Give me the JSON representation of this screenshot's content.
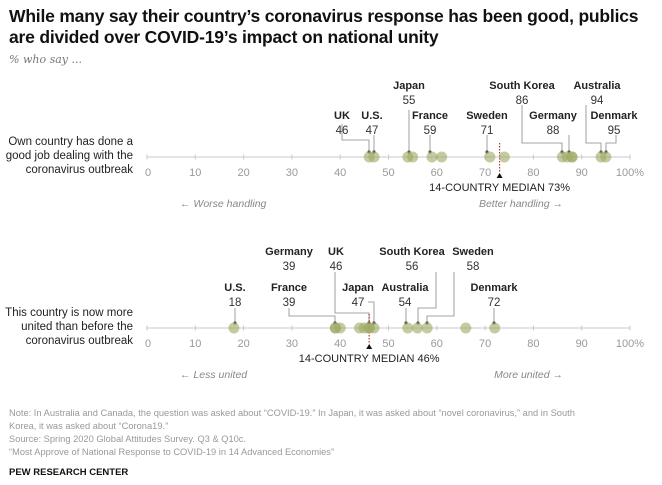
{
  "header": {
    "title": "While many say their country’s coronavirus response has been good, publics are divided over COVID-19’s impact on national unity",
    "subtitle": "% who say ..."
  },
  "footer": {
    "note_line1": "Note: In Australia and Canada, the question was asked about “COVID-19.” In Japan, it was asked about “novel coronavirus,” and in South",
    "note_line2": "Korea, it was asked about “Corona19.”",
    "source": "Source: Spring 2020 Global Attitudes Survey. Q3 & Q10c.",
    "report": "“Most Approve of National Response to COVID-19 in 14 Advanced Economies”",
    "brand": "PEW RESEARCH CENTER"
  },
  "colors": {
    "dot": "#9fa863",
    "median_line": "#c0392b",
    "axis": "#c8c8c8"
  },
  "chart_data": [
    {
      "type": "scatter",
      "title": "Own country has done a good job dealing with the coronavirus outbreak",
      "row_label_lines": [
        "Own country has done a",
        "good job dealing with the",
        "coronavirus outbreak"
      ],
      "xlim": [
        0,
        100
      ],
      "ticks": [
        "0",
        "10",
        "20",
        "30",
        "40",
        "50",
        "60",
        "70",
        "80",
        "90",
        "100%"
      ],
      "median": 73,
      "median_label": "14-COUNTRY MEDIAN 73%",
      "left_direction": "Worse handling",
      "right_direction": "Better handling",
      "points": [
        {
          "name": "UK",
          "value": 46,
          "labeled": true
        },
        {
          "name": "U.S.",
          "value": 47,
          "labeled": true
        },
        {
          "name": "",
          "value": 54,
          "labeled": false
        },
        {
          "name": "Japan",
          "value": 55,
          "labeled": true
        },
        {
          "name": "France",
          "value": 59,
          "labeled": true
        },
        {
          "name": "",
          "value": 61,
          "labeled": false
        },
        {
          "name": "Sweden",
          "value": 71,
          "labeled": true
        },
        {
          "name": "",
          "value": 74,
          "labeled": false
        },
        {
          "name": "South Korea",
          "value": 86,
          "labeled": true
        },
        {
          "name": "",
          "value": 87,
          "labeled": false
        },
        {
          "name": "Germany",
          "value": 88,
          "labeled": true
        },
        {
          "name": "",
          "value": 88,
          "labeled": false
        },
        {
          "name": "Australia",
          "value": 94,
          "labeled": true
        },
        {
          "name": "Denmark",
          "value": 95,
          "labeled": true
        }
      ]
    },
    {
      "type": "scatter",
      "title": "This country is now more united than before the coronavirus outbreak",
      "row_label_lines": [
        "This country is now more",
        "united than before the",
        "coronavirus outbreak"
      ],
      "xlim": [
        0,
        100
      ],
      "ticks": [
        "0",
        "10",
        "20",
        "30",
        "40",
        "50",
        "60",
        "70",
        "80",
        "90",
        "100%"
      ],
      "median": 46,
      "median_label": "14-COUNTRY MEDIAN 46%",
      "left_direction": "Less united",
      "right_direction": "More united",
      "points": [
        {
          "name": "U.S.",
          "value": 18,
          "labeled": true
        },
        {
          "name": "Germany",
          "value": 39,
          "labeled": true
        },
        {
          "name": "France",
          "value": 39,
          "labeled": true
        },
        {
          "name": "",
          "value": 40,
          "labeled": false
        },
        {
          "name": "",
          "value": 44,
          "labeled": false
        },
        {
          "name": "",
          "value": 45,
          "labeled": false
        },
        {
          "name": "UK",
          "value": 46,
          "labeled": true
        },
        {
          "name": "",
          "value": 46,
          "labeled": false
        },
        {
          "name": "Japan",
          "value": 47,
          "labeled": true
        },
        {
          "name": "Australia",
          "value": 54,
          "labeled": true
        },
        {
          "name": "South Korea",
          "value": 56,
          "labeled": true
        },
        {
          "name": "Sweden",
          "value": 58,
          "labeled": true
        },
        {
          "name": "",
          "value": 66,
          "labeled": false
        },
        {
          "name": "Denmark",
          "value": 72,
          "labeled": true
        }
      ]
    }
  ]
}
